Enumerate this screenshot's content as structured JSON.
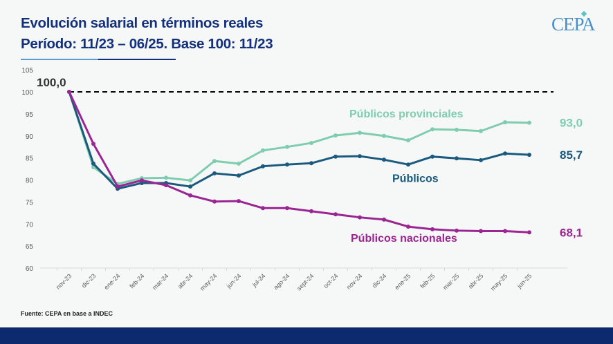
{
  "header": {
    "title_line1": "Evolución salarial en términos reales",
    "title_line2": "Período: 11/23 – 06/25. Base 100: 11/23",
    "logo": "CEPA"
  },
  "footer": {
    "source": "Fuente: CEPA  en base a INDEC"
  },
  "chart_data": {
    "type": "line",
    "title": "",
    "xlabel": "",
    "ylabel": "",
    "ylim": [
      60,
      105
    ],
    "yticks": [
      60,
      65,
      70,
      75,
      80,
      85,
      90,
      95,
      100,
      105
    ],
    "grid": false,
    "categories": [
      "nov-23",
      "dic-23",
      "ene-24",
      "feb-24",
      "mar-24",
      "abr-24",
      "may-24",
      "jun-24",
      "jul-24",
      "ago-24",
      "sept-24",
      "oct-24",
      "nov-24",
      "dic-24",
      "ene-25",
      "feb-25",
      "mar-25",
      "abr-25",
      "may-25",
      "jun-25"
    ],
    "reference_line": {
      "value": 100,
      "style": "dashed",
      "label": "100,0",
      "color": "#000000"
    },
    "series": [
      {
        "name": "Públicos provinciales",
        "color": "#7fcdb0",
        "end_label": "93,0",
        "values": [
          100,
          82.9,
          79.1,
          80.4,
          80.5,
          79.9,
          84.3,
          83.7,
          86.7,
          87.5,
          88.4,
          90.1,
          90.7,
          90.0,
          89.0,
          91.5,
          91.4,
          91.1,
          93.1,
          93.0
        ]
      },
      {
        "name": "Públicos",
        "color": "#1a5a7e",
        "end_label": "85,7",
        "values": [
          100,
          83.7,
          78.0,
          79.3,
          79.3,
          78.5,
          81.5,
          81.0,
          83.1,
          83.5,
          83.8,
          85.3,
          85.4,
          84.6,
          83.5,
          85.3,
          84.9,
          84.5,
          86.0,
          85.7
        ]
      },
      {
        "name": "Públicos nacionales",
        "color": "#9b2592",
        "end_label": "68,1",
        "values": [
          100,
          88.2,
          78.5,
          79.9,
          78.8,
          76.5,
          75.1,
          75.2,
          73.6,
          73.6,
          72.9,
          72.2,
          71.5,
          71.0,
          69.4,
          68.8,
          68.5,
          68.4,
          68.4,
          68.1
        ]
      }
    ]
  }
}
